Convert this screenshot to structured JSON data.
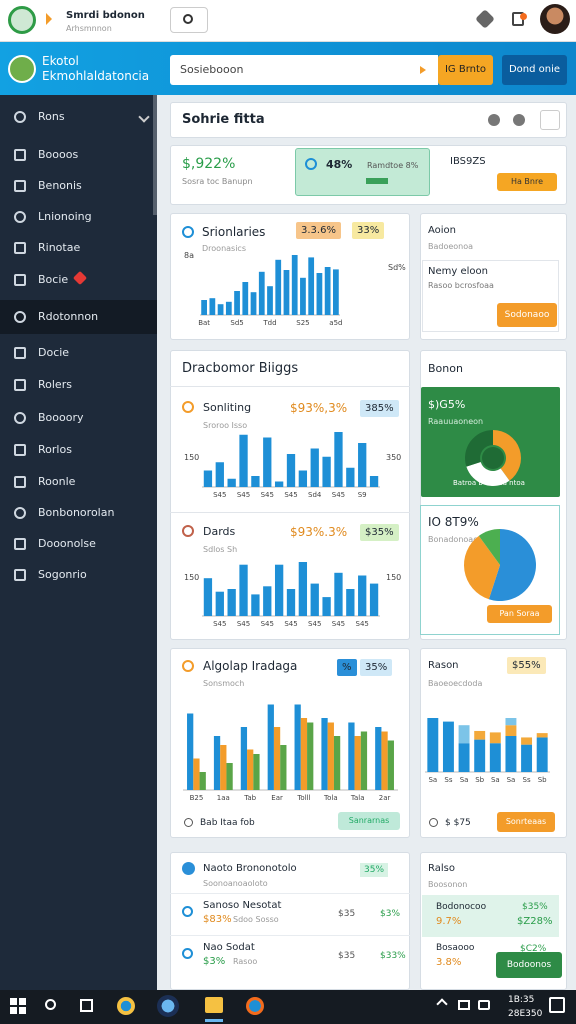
{
  "topbar": {
    "title": "Smrdi bdonon",
    "subtitle": "Arhsmnnon"
  },
  "header": {
    "brand": [
      "Ekotol",
      "Ekmohlaldatoncia"
    ],
    "search": "Sosiebooon",
    "button1": "IG Brnto",
    "button2": "Dond onie"
  },
  "sidebar": {
    "items": [
      "Rons",
      "Boooos",
      "Benonis",
      "Lnionoing",
      "Rinotae",
      "Bocie",
      "Rdotonnon",
      "Docie",
      "Rolers",
      "Boooory",
      "Rorlos",
      "Roonle",
      "Bonbonorolan",
      "Dooonolse",
      "Sogonrio"
    ]
  },
  "panel_title": "Sohrie fitta",
  "stats": {
    "value": "$,922%",
    "caption": "Sosra toc Banupn",
    "box_value": "48%",
    "box_label": "Ramdtoe 8%",
    "right_value": "IBS9ZS",
    "button": "Ha Bnre"
  },
  "info_card": {
    "title": "Aoion",
    "subtitle": "Badoeonoa",
    "heading": "Nemy eloon",
    "text": "Rasoo bcrosfoaa",
    "button": "Sodonaoo"
  },
  "big_card_title": "Dracbomor Biiggs",
  "side_panel_title": "Bonon",
  "list_card": {
    "title": "Naoto Brononotolo",
    "subtitle": "Soonoanoaoloto",
    "badge": "35%",
    "rows": [
      {
        "title": "Sanoso Nesotat",
        "value": "$83%",
        "sub": "Sdoo Sosso",
        "a": "$35",
        "b": "$3%"
      },
      {
        "title": "Nao Sodat",
        "value": "$3%",
        "sub": "Rasoo",
        "a": "$35",
        "b": "$33%"
      }
    ]
  },
  "summary_card": {
    "title": "Ralso",
    "subtitle": "Boosonon",
    "row1": [
      "Bodonocoo",
      "9.7%",
      "$35%",
      "$Z28%"
    ],
    "row2": [
      "Bosaooo",
      "3.8%",
      "$C2%"
    ],
    "button": "Bodoonos"
  },
  "taskbar": {
    "time": "1B:35",
    "date": "28E350"
  },
  "chart_data": [
    {
      "type": "bar",
      "title": "Srionlaries",
      "subtitle": "Droonasics",
      "badges": [
        "3.3.6%",
        "33%"
      ],
      "side_labels": [
        "8a",
        "Sd%"
      ],
      "ylim": [
        0,
        100
      ],
      "categories": [
        "Bat",
        null,
        null,
        null,
        "Sd5",
        null,
        null,
        null,
        "Tdd",
        null,
        null,
        null,
        "S25",
        null,
        null,
        null,
        "a5d"
      ],
      "series": [
        {
          "color": "#1e8fd6",
          "values": [
            25,
            28,
            18,
            22,
            40,
            55,
            38,
            72,
            48,
            92,
            75,
            100,
            62,
            96,
            70,
            80,
            76
          ]
        }
      ]
    },
    {
      "type": "bar",
      "title": "Sonliting",
      "subtitle": "Sroroo Isso",
      "value": "$93%,3%",
      "badges": [
        "385%"
      ],
      "side_labels": [
        "150",
        "350"
      ],
      "ylim": [
        0,
        100
      ],
      "categories": [
        null,
        "S45",
        null,
        "S45",
        null,
        "S45",
        null,
        "S45",
        null,
        "Sd4",
        null,
        "S45",
        null,
        "S9",
        null
      ],
      "series": [
        {
          "color": "#1e8fd6",
          "values": [
            30,
            45,
            15,
            95,
            20,
            90,
            10,
            60,
            30,
            70,
            55,
            100,
            35,
            80,
            20
          ]
        }
      ]
    },
    {
      "type": "bar",
      "title": "Dards",
      "subtitle": "Sdlos Sh",
      "value": "$93%.3%",
      "badges": [
        "$35%"
      ],
      "side_labels": [
        "150",
        "150"
      ],
      "ylim": [
        0,
        100
      ],
      "categories": [
        null,
        "S45",
        null,
        "S45",
        null,
        "S45",
        null,
        "S45",
        null,
        "S45",
        null,
        "S45",
        null,
        "S45",
        null
      ],
      "series": [
        {
          "color": "#1e8fd6",
          "values": [
            70,
            45,
            50,
            95,
            40,
            55,
            95,
            50,
            100,
            60,
            35,
            80,
            50,
            75,
            60
          ]
        }
      ]
    },
    {
      "type": "bar",
      "title": "Algolap Iradaga",
      "subtitle": "Sonsmoch",
      "badges": [
        "%",
        "35%"
      ],
      "footer": "Bab Itaa fob",
      "button": "Sanrarnas",
      "ylim": [
        0,
        100
      ],
      "categories": [
        "B25",
        "1aa",
        "Tab",
        "Ear",
        "Tolll",
        "Tola",
        "Tala",
        "2ar"
      ],
      "series": [
        {
          "color": "#1e8fd6",
          "values": [
            85,
            60,
            70,
            95,
            95,
            80,
            75,
            70
          ]
        },
        {
          "color": "#f39c2a",
          "values": [
            35,
            50,
            45,
            70,
            80,
            75,
            60,
            65
          ]
        },
        {
          "color": "#5aa548",
          "values": [
            20,
            30,
            40,
            50,
            75,
            60,
            65,
            55
          ]
        }
      ]
    },
    {
      "type": "bar",
      "stacked": true,
      "title": "Rason",
      "subtitle": "Baoeoecdoda",
      "badges": [
        "$55%"
      ],
      "footer": "$ $75",
      "button": "Sonrteaas",
      "ylim": [
        0,
        100
      ],
      "categories": [
        "Sa",
        "Ss",
        "Sa",
        "Sb",
        "Sa",
        "Sa",
        "Ss",
        "Sb"
      ],
      "series": [
        {
          "color": "#1e8fd6",
          "values": [
            75,
            70,
            40,
            45,
            40,
            50,
            38,
            48
          ]
        },
        {
          "color": "#f3a93a",
          "values": [
            0,
            0,
            0,
            12,
            15,
            15,
            10,
            6
          ]
        },
        {
          "color": "#7cc4e8",
          "values": [
            0,
            0,
            25,
            0,
            0,
            10,
            0,
            0
          ]
        }
      ]
    },
    {
      "type": "pie",
      "donut": true,
      "title": "$)G5%",
      "subtitle": "Raauuaoneon",
      "caption": "Batroa b nabad ntoa",
      "values": [
        40,
        30,
        30
      ],
      "colors": [
        "#f39c2a",
        "#ffffff",
        "#1f6b35"
      ]
    },
    {
      "type": "pie",
      "title": "IO 8T9%",
      "subtitle": "Bonadonoao",
      "button": "Pan Soraa",
      "values": [
        55,
        35,
        10
      ],
      "colors": [
        "#2a8fd8",
        "#f39c2a",
        "#4caf50"
      ]
    }
  ]
}
